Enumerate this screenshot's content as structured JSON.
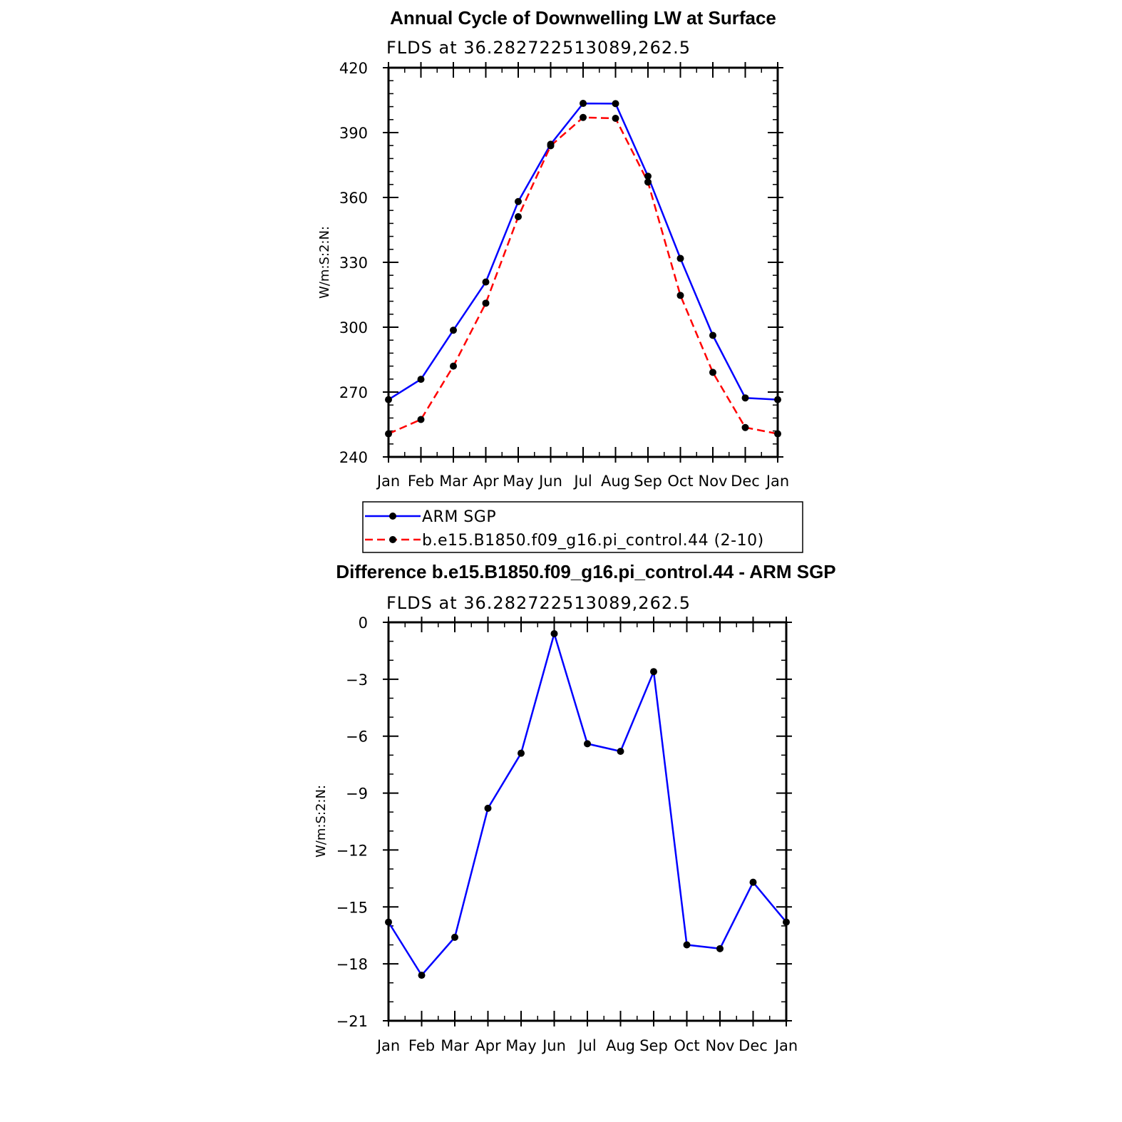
{
  "chart_data": [
    {
      "type": "line",
      "title": "Annual Cycle of Downwelling LW at Surface",
      "subtitle": "FLDS at 36.282722513089,262.5",
      "xlabel": "",
      "ylabel": "W/m:S:2:N:",
      "categories": [
        "Jan",
        "Feb",
        "Mar",
        "Apr",
        "May",
        "Jun",
        "Jul",
        "Aug",
        "Sep",
        "Oct",
        "Nov",
        "Dec",
        "Jan"
      ],
      "ylim": [
        240,
        420
      ],
      "yticks": [
        240,
        270,
        300,
        330,
        360,
        390,
        420
      ],
      "grid": false,
      "legend_position": "below plot",
      "series": [
        {
          "name": "ARM SGP",
          "color": "#0000ff",
          "style": "solid",
          "marker": "filled-circle",
          "values": [
            266.5,
            275.9,
            298.6,
            320.9,
            358.1,
            384.6,
            403.5,
            403.4,
            369.8,
            331.8,
            296.2,
            267.3,
            266.5
          ]
        },
        {
          "name": "b.e15.B1850.f09_g16.pi_control.44 (2-10)",
          "color": "#ff0000",
          "style": "dashed",
          "marker": "filled-circle",
          "values": [
            250.7,
            257.3,
            282.0,
            311.1,
            351.1,
            383.9,
            397.0,
            396.6,
            367.1,
            314.7,
            279.1,
            253.6,
            250.7
          ]
        }
      ]
    },
    {
      "type": "line",
      "title": "Difference b.e15.B1850.f09_g16.pi_control.44 - ARM SGP",
      "subtitle": "FLDS at 36.282722513089,262.5",
      "xlabel": "",
      "ylabel": "W/m:S:2:N:",
      "categories": [
        "Jan",
        "Feb",
        "Mar",
        "Apr",
        "May",
        "Jun",
        "Jul",
        "Aug",
        "Sep",
        "Oct",
        "Nov",
        "Dec",
        "Jan"
      ],
      "ylim": [
        -21,
        0
      ],
      "yticks": [
        -21,
        -18,
        -15,
        -12,
        -9,
        -6,
        -3,
        0
      ],
      "ytick_labels": [
        "−21",
        "−18",
        "−15",
        "−12",
        "−9",
        "−6",
        "−3",
        "0"
      ],
      "grid": false,
      "series": [
        {
          "color": "#0000ff",
          "style": "solid",
          "marker": "filled-circle",
          "values": [
            -15.8,
            -18.6,
            -16.6,
            -9.8,
            -6.9,
            -0.6,
            -6.4,
            -6.8,
            -2.6,
            -17.0,
            -17.2,
            -13.7,
            -15.8
          ]
        }
      ]
    }
  ]
}
